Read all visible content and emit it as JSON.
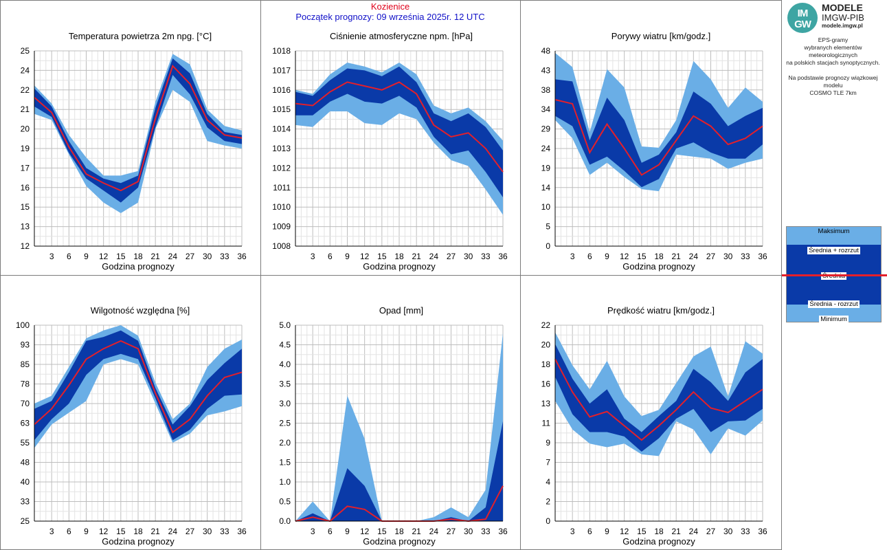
{
  "header": {
    "station": "Kozienice",
    "start": "Początek prognozy: 09 września 2025r. 12 UTC"
  },
  "branding": {
    "logo_top": "IM",
    "logo_bottom": "GW",
    "name": "MODELE",
    "org": "IMGW-PIB",
    "url": "modele.imgw.pl",
    "desc_lines": [
      "EPS-gramy",
      "wybranych elementów meteorologicznych",
      "na polskich stacjach  synoptycznych.",
      "",
      "Na podstawie prognozy wiązkowej modelu",
      "COSMO TLE 7km"
    ]
  },
  "legend": {
    "max": "Maksimum",
    "plus": "Średnia + rozrzut",
    "mean": "Średnia",
    "minus": "Średnia - rozrzut",
    "min": "Minimum",
    "colors": {
      "outer": "#6aaee6",
      "inner": "#0a3aa8",
      "mean": "#e41f2a"
    }
  },
  "chart_data": [
    {
      "type": "area",
      "title": "Temperatura powietrza 2m npg. [°C]",
      "xlabel": "Godzina prognozy",
      "x": [
        0,
        3,
        6,
        9,
        12,
        15,
        18,
        21,
        24,
        27,
        30,
        33,
        36
      ],
      "xticks": [
        "3",
        "6",
        "9",
        "12",
        "15",
        "18",
        "21",
        "24",
        "27",
        "30",
        "33",
        "36"
      ],
      "yticks": [
        "12",
        "13",
        "15",
        "16",
        "17",
        "19",
        "20",
        "21",
        "22",
        "24",
        "25"
      ],
      "ylim": [
        12,
        25
      ],
      "series": [
        {
          "name": "Maksimum",
          "values": [
            22.7,
            21.5,
            19.4,
            17.9,
            16.7,
            16.7,
            17.0,
            21.6,
            24.8,
            24.1,
            21.1,
            20.0,
            19.7
          ]
        },
        {
          "name": "Średnia + rozrzut",
          "values": [
            22.5,
            21.3,
            19.0,
            17.2,
            16.5,
            16.2,
            16.7,
            21.2,
            24.5,
            23.5,
            20.8,
            19.6,
            19.4
          ]
        },
        {
          "name": "Średnia",
          "values": [
            21.9,
            20.9,
            18.6,
            16.8,
            16.2,
            15.7,
            16.3,
            20.5,
            24.0,
            22.8,
            20.4,
            19.4,
            19.2
          ]
        },
        {
          "name": "Średnia - rozrzut",
          "values": [
            21.3,
            20.6,
            18.2,
            16.5,
            15.7,
            14.9,
            15.9,
            19.9,
            23.4,
            22.1,
            19.9,
            19.0,
            18.8
          ]
        },
        {
          "name": "Minimum",
          "values": [
            20.8,
            20.4,
            18.1,
            16.0,
            14.9,
            14.2,
            14.9,
            19.8,
            22.4,
            21.6,
            19.0,
            18.7,
            18.5
          ]
        }
      ]
    },
    {
      "type": "area",
      "title": "Ciśnienie atmosferyczne npm. [hPa]",
      "xlabel": "Godzina prognozy",
      "x": [
        0,
        3,
        6,
        9,
        12,
        15,
        18,
        21,
        24,
        27,
        30,
        33,
        36
      ],
      "xticks": [
        "3",
        "6",
        "9",
        "12",
        "15",
        "18",
        "21",
        "24",
        "27",
        "30",
        "33",
        "36"
      ],
      "yticks": [
        "1008",
        "1009",
        "1010",
        "1011",
        "1012",
        "1013",
        "1014",
        "1015",
        "1016",
        "1017",
        "1018"
      ],
      "ylim": [
        1008,
        1018
      ],
      "series": [
        {
          "name": "Maksimum",
          "values": [
            1016.0,
            1015.8,
            1016.8,
            1017.4,
            1017.2,
            1016.9,
            1017.4,
            1016.8,
            1015.2,
            1014.8,
            1015.1,
            1014.4,
            1013.4
          ]
        },
        {
          "name": "Średnia + rozrzut",
          "values": [
            1015.9,
            1015.7,
            1016.5,
            1017.1,
            1017.0,
            1016.7,
            1017.2,
            1016.4,
            1014.8,
            1014.4,
            1014.8,
            1014.1,
            1012.9
          ]
        },
        {
          "name": "Średnia",
          "values": [
            1015.3,
            1015.2,
            1015.9,
            1016.4,
            1016.2,
            1016.0,
            1016.4,
            1015.8,
            1014.2,
            1013.6,
            1013.8,
            1013.0,
            1011.8
          ]
        },
        {
          "name": "Średnia - rozrzut",
          "values": [
            1014.7,
            1014.7,
            1015.4,
            1015.8,
            1015.4,
            1015.3,
            1015.7,
            1015.1,
            1013.6,
            1012.7,
            1012.9,
            1011.8,
            1010.5
          ]
        },
        {
          "name": "Minimum",
          "values": [
            1014.2,
            1014.1,
            1014.9,
            1014.9,
            1014.3,
            1014.2,
            1014.8,
            1014.5,
            1013.3,
            1012.4,
            1012.1,
            1010.9,
            1009.6
          ]
        }
      ]
    },
    {
      "type": "area",
      "title": "Porywy wiatru [km/godz.]",
      "xlabel": "Godzina prognozy",
      "x": [
        0,
        3,
        6,
        9,
        12,
        15,
        18,
        21,
        24,
        27,
        30,
        33,
        36
      ],
      "xticks": [
        "3",
        "6",
        "9",
        "12",
        "15",
        "18",
        "21",
        "24",
        "27",
        "30",
        "33",
        "36"
      ],
      "yticks": [
        "0",
        "5",
        "10",
        "14",
        "19",
        "24",
        "29",
        "34",
        "38",
        "43",
        "48"
      ],
      "ylim": [
        0,
        48
      ],
      "series": [
        {
          "name": "Maksimum",
          "values": [
            47.5,
            44.0,
            28.0,
            43.5,
            39.0,
            24.5,
            24.2,
            31.0,
            45.5,
            41.0,
            34.0,
            39.0,
            35.5
          ]
        },
        {
          "name": "Średnia + rozrzut",
          "values": [
            41.0,
            40.5,
            26.0,
            36.5,
            31.0,
            20.5,
            22.5,
            28.0,
            38.0,
            35.0,
            29.5,
            32.0,
            34.0
          ]
        },
        {
          "name": "Średnia",
          "values": [
            36.0,
            35.0,
            23.0,
            30.0,
            24.0,
            17.5,
            20.0,
            26.0,
            32.0,
            29.5,
            25.0,
            26.5,
            29.5
          ]
        },
        {
          "name": "Średnia - rozrzut",
          "values": [
            32.0,
            29.5,
            20.0,
            22.0,
            18.5,
            14.5,
            16.5,
            24.0,
            25.5,
            23.0,
            21.5,
            21.5,
            25.0
          ]
        },
        {
          "name": "Minimum",
          "values": [
            31.0,
            26.5,
            17.5,
            20.5,
            17.0,
            14.0,
            13.5,
            22.5,
            22.0,
            21.5,
            19.0,
            20.5,
            21.5
          ]
        }
      ]
    },
    {
      "type": "area",
      "title": "Wilgotność względna [%]",
      "xlabel": "Godzina prognozy",
      "x": [
        0,
        3,
        6,
        9,
        12,
        15,
        18,
        21,
        24,
        27,
        30,
        33,
        36
      ],
      "xticks": [
        "3",
        "6",
        "9",
        "12",
        "15",
        "18",
        "21",
        "24",
        "27",
        "30",
        "33",
        "36"
      ],
      "yticks": [
        "25",
        "33",
        "40",
        "48",
        "55",
        "63",
        "70",
        "78",
        "85",
        "93",
        "100"
      ],
      "ylim": [
        25,
        100
      ],
      "series": [
        {
          "name": "Maksimum",
          "values": [
            70.0,
            73.0,
            84.0,
            95.0,
            98.0,
            100.0,
            96.0,
            78.0,
            64.0,
            70.0,
            84.0,
            91.0,
            94.5
          ]
        },
        {
          "name": "Średnia + rozrzut",
          "values": [
            68.0,
            71.0,
            82.0,
            94.0,
            95.5,
            98.0,
            94.0,
            76.0,
            62.0,
            69.0,
            79.0,
            85.5,
            91.0
          ]
        },
        {
          "name": "Średnia",
          "values": [
            62.0,
            68.0,
            77.0,
            87.0,
            91.0,
            94.0,
            91.0,
            74.0,
            59.0,
            64.0,
            73.0,
            80.0,
            82.0
          ]
        },
        {
          "name": "Średnia - rozrzut",
          "values": [
            56.0,
            64.0,
            70.0,
            81.0,
            87.0,
            89.0,
            87.0,
            72.0,
            56.0,
            60.0,
            68.0,
            73.0,
            73.5
          ]
        },
        {
          "name": "Minimum",
          "values": [
            53.0,
            62.0,
            66.5,
            71.0,
            85.0,
            87.0,
            85.0,
            70.0,
            55.0,
            58.5,
            65.5,
            67.0,
            69.0
          ]
        }
      ]
    },
    {
      "type": "area",
      "title": "Opad [mm]",
      "xlabel": "Godzina prognozy",
      "x": [
        0,
        3,
        6,
        9,
        12,
        15,
        18,
        21,
        24,
        27,
        30,
        33,
        36
      ],
      "xticks": [
        "3",
        "6",
        "9",
        "12",
        "15",
        "18",
        "21",
        "24",
        "27",
        "30",
        "33",
        "36"
      ],
      "yticks": [
        "0.0",
        "0.5",
        "1.0",
        "1.5",
        "2.0",
        "2.5",
        "3.0",
        "3.5",
        "4.0",
        "4.5",
        "5.0"
      ],
      "ylim": [
        0,
        5
      ],
      "series": [
        {
          "name": "Maksimum",
          "values": [
            0.0,
            0.5,
            0.0,
            3.2,
            2.1,
            0.0,
            0.0,
            0.0,
            0.1,
            0.35,
            0.1,
            0.8,
            4.8
          ]
        },
        {
          "name": "Średnia + rozrzut",
          "values": [
            0.0,
            0.2,
            0.0,
            1.35,
            0.9,
            0.0,
            0.0,
            0.0,
            0.0,
            0.1,
            0.0,
            0.35,
            2.55
          ]
        },
        {
          "name": "Średnia",
          "values": [
            0.0,
            0.1,
            0.0,
            0.38,
            0.3,
            0.0,
            0.0,
            0.0,
            0.0,
            0.05,
            0.0,
            0.05,
            0.9
          ]
        },
        {
          "name": "Średnia - rozrzut",
          "values": [
            0.0,
            0.0,
            0.0,
            0.0,
            0.0,
            0.0,
            0.0,
            0.0,
            0.0,
            0.0,
            0.0,
            0.0,
            0.0
          ]
        },
        {
          "name": "Minimum",
          "values": [
            0.0,
            0.0,
            0.0,
            0.0,
            0.0,
            0.0,
            0.0,
            0.0,
            0.0,
            0.0,
            0.0,
            0.0,
            0.0
          ]
        }
      ]
    },
    {
      "type": "area",
      "title": "Prędkość wiatru [km/godz.]",
      "xlabel": "Godzina prognozy",
      "x": [
        0,
        3,
        6,
        9,
        12,
        15,
        18,
        21,
        24,
        27,
        30,
        33,
        36
      ],
      "xticks": [
        "3",
        "6",
        "9",
        "12",
        "15",
        "18",
        "21",
        "24",
        "27",
        "30",
        "33",
        "36"
      ],
      "yticks": [
        "0",
        "2",
        "4",
        "7",
        "9",
        "11",
        "13",
        "16",
        "18",
        "20",
        "22"
      ],
      "ylim": [
        0,
        22
      ],
      "series": [
        {
          "name": "Maksimum",
          "values": [
            21.2,
            17.5,
            14.8,
            18.0,
            14.0,
            11.8,
            12.5,
            15.5,
            18.5,
            19.6,
            14.0,
            20.2,
            18.8
          ]
        },
        {
          "name": "Średnia + rozrzut",
          "values": [
            19.9,
            16.0,
            13.2,
            14.8,
            11.5,
            10.0,
            11.8,
            13.5,
            17.1,
            15.6,
            13.5,
            16.7,
            18.2
          ]
        },
        {
          "name": "Średnia",
          "values": [
            18.2,
            14.5,
            11.7,
            12.3,
            10.7,
            9.1,
            10.7,
            12.5,
            14.5,
            12.7,
            12.2,
            13.5,
            14.8
          ]
        },
        {
          "name": "Średnia - rozrzut",
          "values": [
            16.2,
            12.0,
            10.0,
            10.0,
            9.5,
            7.8,
            9.3,
            11.5,
            12.6,
            10.0,
            11.2,
            11.3,
            12.6
          ]
        },
        {
          "name": "Minimum",
          "values": [
            13.5,
            10.3,
            8.7,
            8.3,
            8.7,
            7.5,
            7.3,
            11.2,
            10.3,
            7.5,
            10.4,
            9.6,
            11.3
          ]
        }
      ]
    }
  ]
}
